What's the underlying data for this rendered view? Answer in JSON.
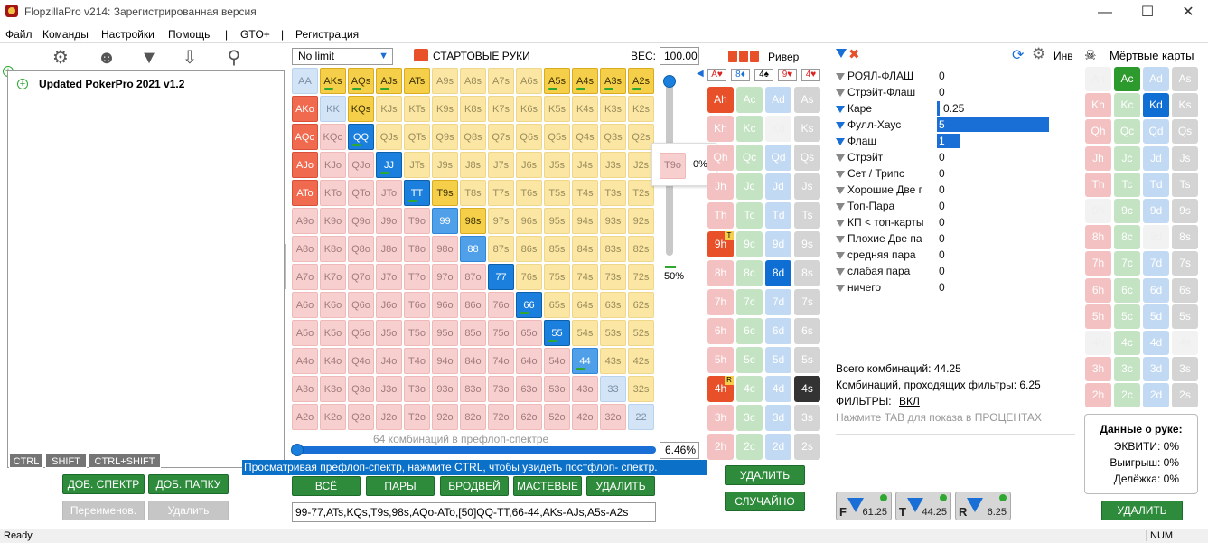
{
  "app": {
    "title": "FlopzillaPro v214: Зарегистрированная версия"
  },
  "menu": [
    "Файл",
    "Команды",
    "Настройки",
    "Помощь",
    "|",
    "GTO+",
    "|",
    "Регистрация"
  ],
  "tree": {
    "item": "Updated PokerPro 2021 v1.2"
  },
  "modifiers": [
    "CTRL",
    "SHIFT",
    "CTRL+SHIFT"
  ],
  "left_buttons": {
    "add_range": "ДОБ. СПЕКТР",
    "add_folder": "ДОБ. ПАПКУ",
    "rename": "Переименов.",
    "delete": "Удалить"
  },
  "range": {
    "game_type": "No limit",
    "header": "СТАРТОВЫЕ РУКИ",
    "weight_label": "ВЕС:",
    "weight_value": "100.00",
    "combos_caption": "64 комбинаций в префлоп-спектре",
    "percent": "6.46%",
    "hint": "Просматривая префлоп-спектр, нажмите CTRL, чтобы увидеть постфлоп- спектр.",
    "slider_percent": "50%",
    "hover_hand": "T9o",
    "hover_pct": "0%",
    "buttons": [
      "ВСЁ",
      "ПАРЫ",
      "БРОДВЕЙ",
      "МАСТЕВЫЕ",
      "УДАЛИТЬ"
    ],
    "text": "99-77,ATs,KQs,T9s,98s,AQo-ATo,[50]QQ-TT,66-44,AKs-AJs,A5s-A2s"
  },
  "grid": {
    "ranks": [
      "A",
      "K",
      "Q",
      "J",
      "T",
      "9",
      "8",
      "7",
      "6",
      "5",
      "4",
      "3",
      "2"
    ],
    "selected": [
      "AKs",
      "AQs",
      "AJs",
      "ATs",
      "A5s",
      "A4s",
      "A3s",
      "A2s",
      "AKo",
      "KQs",
      "AQo",
      "QQ",
      "AJo",
      "JJ",
      "ATo",
      "TT",
      "T9s",
      "99",
      "98s",
      "88",
      "77",
      "66",
      "55",
      "44"
    ],
    "marked": [
      "AKs",
      "AQs",
      "AJs",
      "A5s",
      "A4s",
      "A3s",
      "A2s",
      "QQ",
      "JJ",
      "TT",
      "66",
      "55",
      "44"
    ]
  },
  "board": {
    "header": "Ривер",
    "cards": [
      "A♥",
      "8♦",
      "4♠",
      "9♥",
      "4♥"
    ],
    "delete": "УДАЛИТЬ",
    "random": "СЛУЧАЙНО"
  },
  "stats": {
    "header_short": "Инв",
    "rows": [
      {
        "label": "РОЯЛ-ФЛАШ",
        "value": "0",
        "active": false,
        "fill": 0
      },
      {
        "label": "Стрэйт-Флаш",
        "value": "0",
        "active": false,
        "fill": 0
      },
      {
        "label": "Каре",
        "value": "0.25",
        "active": true,
        "fill": 0.02
      },
      {
        "label": "Фулл-Хаус",
        "value": "5",
        "active": true,
        "fill": 1
      },
      {
        "label": "Флаш",
        "value": "1",
        "active": true,
        "fill": 0.2
      },
      {
        "label": "Стрэйт",
        "value": "0",
        "active": false,
        "fill": 0
      },
      {
        "label": "Сет / Трипс",
        "value": "0",
        "active": false,
        "fill": 0
      },
      {
        "label": "Хорошие Две г",
        "value": "0",
        "active": false,
        "fill": 0
      },
      {
        "label": "Топ-Пара",
        "value": "0",
        "active": false,
        "fill": 0
      },
      {
        "label": "КП < топ-карты",
        "value": "0",
        "active": false,
        "fill": 0
      },
      {
        "label": "Плохие Две па",
        "value": "0",
        "active": false,
        "fill": 0
      },
      {
        "label": "средняя пара",
        "value": "0",
        "active": false,
        "fill": 0
      },
      {
        "label": "слабая пара",
        "value": "0",
        "active": false,
        "fill": 0
      },
      {
        "label": "ничего",
        "value": "0",
        "active": false,
        "fill": 0
      }
    ],
    "total": "Всего комбинаций: 44.25",
    "passing": "Комбинаций, проходящих фильтры: 6.25",
    "filters_label": "ФИЛЬТРЫ:",
    "filters_value": "ВКЛ",
    "tab_hint": "Нажмите TAB для показа в ПРОЦЕНТАХ"
  },
  "streets": [
    {
      "letter": "F",
      "value": "61.25"
    },
    {
      "letter": "T",
      "value": "44.25"
    },
    {
      "letter": "R",
      "value": "6.25"
    }
  ],
  "dead": {
    "header": "Мёртвые карты",
    "hand_title": "Данные о руке:",
    "equity": "ЭКВИТИ: 0%",
    "win": "Выигрыш: 0%",
    "split": "Делёжка: 0%",
    "delete": "УДАЛИТЬ"
  },
  "status": {
    "left": "Ready",
    "right": "NUM"
  },
  "colors": {
    "green": "#2e8b3c",
    "blue": "#1a6fd6",
    "hint_bg": "#0a70c8"
  }
}
